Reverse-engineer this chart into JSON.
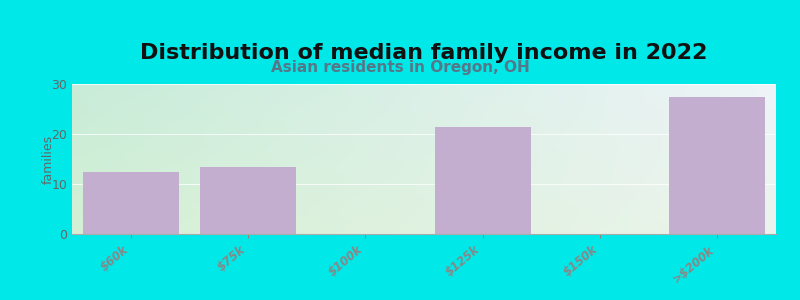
{
  "title": "Distribution of median family income in 2022",
  "subtitle": "Asian residents in Oregon, OH",
  "categories": [
    "$60k",
    "$75k",
    "$100k",
    "$125k",
    "$150k",
    ">$200k"
  ],
  "values": [
    12.5,
    13.5,
    0,
    21.5,
    0,
    27.5
  ],
  "bar_color": "#c4aed0",
  "ylabel": "families",
  "ylim": [
    0,
    30
  ],
  "yticks": [
    0,
    10,
    20,
    30
  ],
  "background_color": "#00e8e8",
  "plot_bg_topleft": "#c8ecd8",
  "plot_bg_topright": "#e8f0f8",
  "plot_bg_bottom": "#e0f0e0",
  "title_fontsize": 16,
  "subtitle_fontsize": 11,
  "subtitle_color": "#557788",
  "tick_label_color": "#994444",
  "ylabel_color": "#666666",
  "ytick_color": "#666666"
}
